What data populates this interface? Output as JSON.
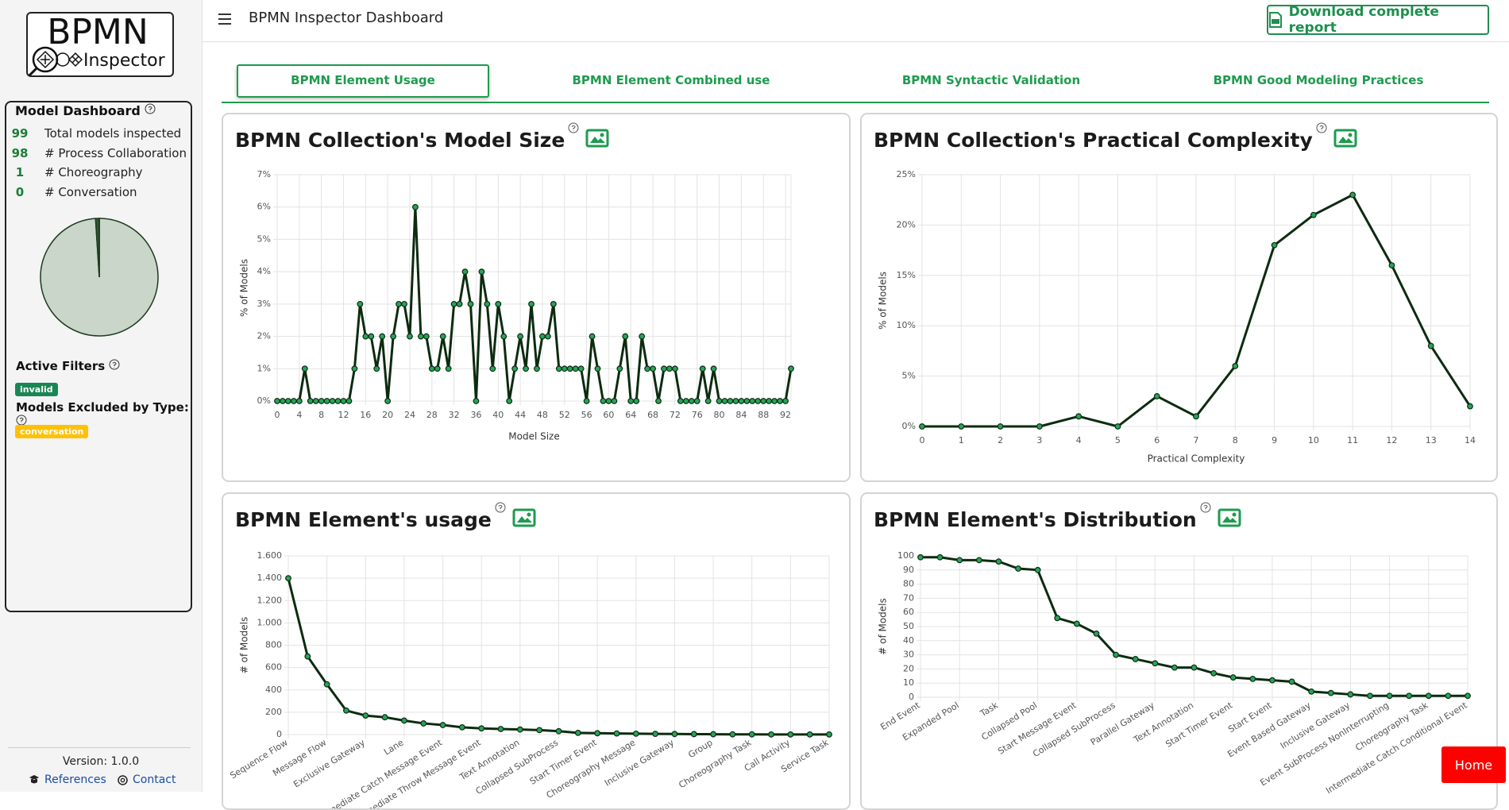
{
  "header": {
    "title": "BPMN Inspector Dashboard",
    "download": "Download complete report"
  },
  "logo": {
    "title": "BPMN",
    "subtitle": "Inspector"
  },
  "sidebar": {
    "title": "Model Dashboard",
    "stats": [
      {
        "value": 99,
        "label": "Total models inspected"
      },
      {
        "value": 98,
        "label": "# Process Collaboration"
      },
      {
        "value": 1,
        "label": "# Choreography"
      },
      {
        "value": 0,
        "label": "# Conversation"
      }
    ],
    "pie_colors": [
      "#c9d6c9",
      "#2f5a36",
      "#7b937b"
    ],
    "active_filters": "Active Filters",
    "filter_badge": "invalid",
    "excluded_title": "Models Excluded by Type:",
    "excluded_badge": "conversation",
    "version": "Version: 1.0.0",
    "links": [
      "References",
      "Contact"
    ]
  },
  "tabs": [
    "BPMN Element Usage",
    "BPMN Element Combined use",
    "BPMN Syntactic Validation",
    "BPMN Good Modeling Practices"
  ],
  "home": "Home",
  "chart_data": [
    {
      "type": "line",
      "title": "BPMN Collection's Model Size",
      "x_label": "Model Size",
      "y_label": "% of Models",
      "x": [
        0,
        1,
        2,
        3,
        4,
        5,
        6,
        7,
        8,
        9,
        10,
        11,
        12,
        13,
        14,
        15,
        16,
        17,
        18,
        19,
        20,
        21,
        22,
        23,
        24,
        25,
        26,
        27,
        28,
        29,
        30,
        31,
        32,
        33,
        34,
        35,
        36,
        37,
        38,
        39,
        40,
        41,
        42,
        43,
        44,
        45,
        46,
        47,
        48,
        49,
        50,
        51,
        52,
        53,
        54,
        55,
        56,
        57,
        58,
        59,
        60,
        61,
        62,
        63,
        64,
        65,
        66,
        67,
        68,
        69,
        70,
        71,
        72,
        73,
        74,
        75,
        76,
        77,
        78,
        79,
        80,
        81,
        82,
        83,
        84,
        85,
        86,
        87,
        88,
        89,
        90,
        91,
        92,
        93
      ],
      "values": [
        0,
        0,
        0,
        0,
        0,
        1,
        0,
        0,
        0,
        0,
        0,
        0,
        0,
        0,
        1,
        3,
        2,
        2,
        1,
        2,
        0,
        2,
        3,
        3,
        2,
        6,
        2,
        2,
        1,
        1,
        2,
        1,
        3,
        3,
        4,
        3,
        0,
        4,
        3,
        1,
        3,
        2,
        0,
        1,
        2,
        1,
        3,
        1,
        2,
        2,
        3,
        1,
        1,
        1,
        1,
        1,
        0,
        2,
        1,
        0,
        0,
        0,
        1,
        2,
        0,
        0,
        2,
        1,
        1,
        0,
        1,
        1,
        1,
        0,
        0,
        0,
        0,
        1,
        0,
        1,
        0,
        0,
        0,
        0,
        0,
        0,
        0,
        0,
        0,
        0,
        0,
        0,
        0,
        1
      ],
      "xlim": [
        0,
        93
      ],
      "xticks": [
        0,
        4,
        8,
        12,
        16,
        20,
        24,
        28,
        32,
        36,
        40,
        44,
        48,
        52,
        56,
        60,
        64,
        68,
        72,
        76,
        80,
        84,
        88,
        92
      ],
      "ylim": [
        0,
        7
      ],
      "yticks": [
        {
          "value": 0,
          "label": "0%"
        },
        {
          "value": 1,
          "label": "1%"
        },
        {
          "value": 2,
          "label": "2%"
        },
        {
          "value": 3,
          "label": "3%"
        },
        {
          "value": 4,
          "label": "4%"
        },
        {
          "value": 5,
          "label": "5%"
        },
        {
          "value": 6,
          "label": "6%"
        },
        {
          "value": 7,
          "label": "7%"
        }
      ],
      "grid": true,
      "line_color": "#0c2b10",
      "marker_color": "#27a35a"
    },
    {
      "type": "line",
      "title": "BPMN Collection's Practical Complexity",
      "x_label": "Practical Complexity",
      "y_label": "% of Models",
      "x": [
        0,
        1,
        2,
        3,
        4,
        5,
        6,
        7,
        8,
        9,
        10,
        11,
        12,
        13,
        14
      ],
      "values": [
        0,
        0,
        0,
        0,
        1,
        0,
        3,
        1,
        6,
        18,
        21,
        23,
        16,
        8,
        2
      ],
      "xlim": [
        0,
        14
      ],
      "xticks": [
        0,
        1,
        2,
        3,
        4,
        5,
        6,
        7,
        8,
        9,
        10,
        11,
        12,
        13,
        14
      ],
      "ylim": [
        0,
        25
      ],
      "yticks": [
        {
          "value": 0,
          "label": "0%"
        },
        {
          "value": 5,
          "label": "5%"
        },
        {
          "value": 10,
          "label": "10%"
        },
        {
          "value": 15,
          "label": "15%"
        },
        {
          "value": 20,
          "label": "20%"
        },
        {
          "value": 25,
          "label": "25%"
        }
      ],
      "grid": true,
      "line_color": "#0c2b10",
      "marker_color": "#27a35a"
    },
    {
      "type": "line",
      "title": "BPMN Element's usage",
      "y_label": "# of Models",
      "categories": [
        "Sequence Flow",
        null,
        "Message Flow",
        null,
        "Exclusive Gateway",
        null,
        "Lane",
        null,
        "Intermediate Catch Message Event",
        null,
        "Intermediate Throw Message Event",
        null,
        "Text Annotation",
        null,
        "Collapsed SubProcess",
        null,
        "Start Timer Event",
        null,
        "Choreography Message",
        null,
        "Inclusive Gateway",
        null,
        "Group",
        null,
        "Choreography Task",
        null,
        "Call Activity",
        null,
        "Service Task"
      ],
      "values": [
        1400,
        700,
        450,
        215,
        170,
        155,
        125,
        100,
        85,
        65,
        55,
        50,
        45,
        40,
        30,
        15,
        12,
        10,
        8,
        6,
        5,
        4,
        3,
        2,
        2,
        1,
        1,
        1,
        1
      ],
      "ylim": [
        0,
        1600
      ],
      "yticks": [
        0,
        200,
        400,
        600,
        800,
        {
          "value": 1000,
          "label": "1.000"
        },
        {
          "value": 1200,
          "label": "1.200"
        },
        {
          "value": 1400,
          "label": "1.400"
        },
        {
          "value": 1600,
          "label": "1.600"
        }
      ],
      "grid": true,
      "line_color": "#0c2b10",
      "marker_color": "#27a35a"
    },
    {
      "type": "line",
      "title": "BPMN Element's Distribution",
      "y_label": "# of Models",
      "categories": [
        "End Event",
        null,
        "Expanded Pool",
        null,
        "Task",
        null,
        "Collapsed Pool",
        null,
        "Start Message Event",
        null,
        "Collapsed SubProcess",
        null,
        "Parallel Gateway",
        null,
        "Text Annotation",
        null,
        "Start Timer Event",
        null,
        "Start Event",
        null,
        "Event Based Gateway",
        null,
        "Inclusive Gateway",
        null,
        "Event SubProcess NonInterrupting",
        null,
        "Choreography Task",
        null,
        "Intermediate Catch Conditional Event"
      ],
      "values": [
        99,
        99,
        97,
        97,
        96,
        91,
        90,
        56,
        52,
        45,
        30,
        27,
        24,
        21,
        21,
        17,
        14,
        13,
        12,
        11,
        4,
        3,
        2,
        1,
        1,
        1,
        1,
        1,
        1
      ],
      "ylim": [
        0,
        100
      ],
      "yticks": [
        0,
        10,
        20,
        30,
        40,
        50,
        60,
        70,
        80,
        90,
        100
      ],
      "grid": true,
      "line_color": "#0c2b10",
      "marker_color": "#27a35a"
    }
  ]
}
